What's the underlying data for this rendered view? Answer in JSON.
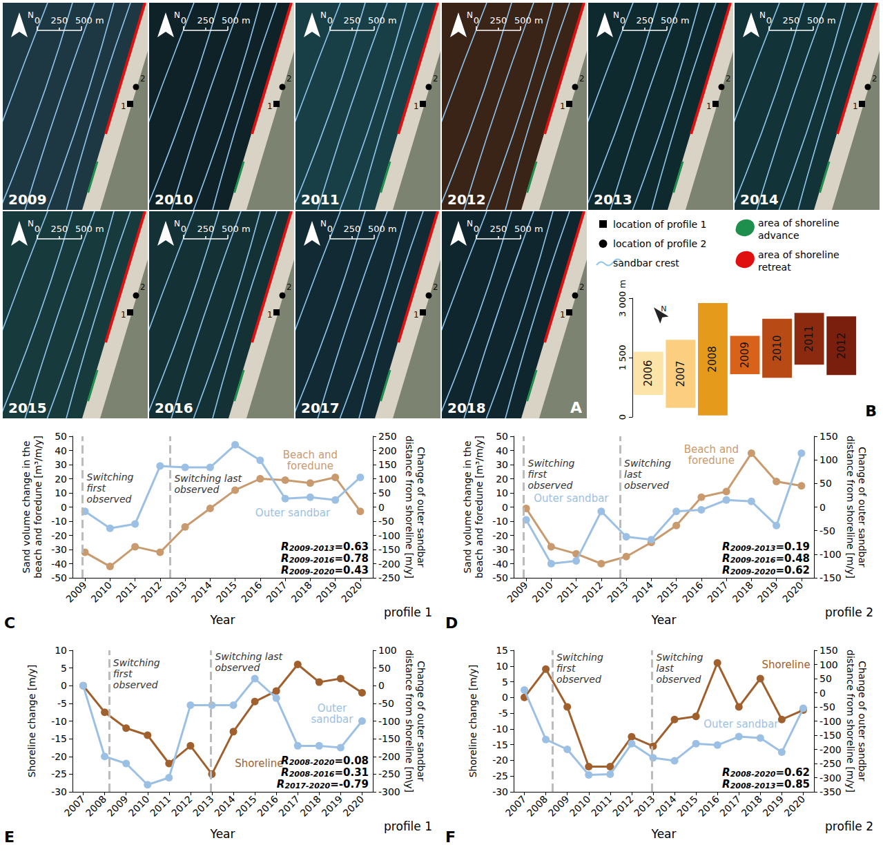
{
  "panel_a": {
    "letter": "A",
    "north": "N",
    "scale_labels": [
      "0",
      "250",
      "500 m"
    ],
    "profile_labels": [
      "1",
      "2"
    ],
    "tiles": [
      {
        "year": "2009",
        "color": "#1d3842"
      },
      {
        "year": "2010",
        "color": "#0f2228"
      },
      {
        "year": "2011",
        "color": "#173f45"
      },
      {
        "year": "2012",
        "color": "#3a2418"
      },
      {
        "year": "2013",
        "color": "#0e2a2e"
      },
      {
        "year": "2014",
        "color": "#123438"
      },
      {
        "year": "2015",
        "color": "#173a3c"
      },
      {
        "year": "2016",
        "color": "#143236"
      },
      {
        "year": "2017",
        "color": "#112a33"
      },
      {
        "year": "2018",
        "color": "#10262e"
      }
    ],
    "key_items": [
      {
        "marker": "square",
        "label": "location of profile 1",
        "color": "#000000"
      },
      {
        "marker": "circle",
        "label": "location of profile 2",
        "color": "#000000"
      },
      {
        "marker": "line",
        "label": "sandbar crest",
        "color": "#8ec5ee"
      },
      {
        "marker": "area",
        "label": "area of shoreline advance",
        "color": "#1f8f4e"
      },
      {
        "marker": "area",
        "label": "area of shoreline retreat",
        "color": "#e01010"
      }
    ]
  },
  "chart_data": [
    {
      "type": "range_bar",
      "letter": "B",
      "north": "N",
      "categories": [
        "2006",
        "2007",
        "2008",
        "2009",
        "2010",
        "2011",
        "2012"
      ],
      "low": [
        560,
        230,
        40,
        1080,
        990,
        1320,
        1060
      ],
      "high": [
        1650,
        1950,
        2880,
        2050,
        2480,
        2630,
        2540
      ],
      "colors": [
        "#fce3a8",
        "#fbcf7f",
        "#e59a1c",
        "#d8621a",
        "#b84a16",
        "#8b2a0f",
        "#7a1f0d"
      ],
      "ylim": [
        0,
        3000
      ],
      "yticks": [
        0,
        {
          "value": 1500,
          "label": "1 500"
        },
        {
          "value": 3000,
          "label": "3 000 m"
        }
      ],
      "data_labels": true,
      "tick_labels": "y",
      "grid": false
    },
    {
      "type": "line",
      "letter": "C",
      "panel": "profile 1",
      "x_title": "Year",
      "y_title": "Sand volume change in the beach and foredune [m³/m/y]",
      "y2_title": "Change of outer sandbar distance from shoreline [m/y]",
      "x": [
        2009,
        2010,
        2011,
        2012,
        2013,
        2014,
        2015,
        2016,
        2017,
        2018,
        2019,
        2020
      ],
      "xlim": [
        2008.5,
        2020.5
      ],
      "xticks": [
        2009,
        2010,
        2011,
        2012,
        2013,
        2014,
        2015,
        2016,
        2017,
        2018,
        2019,
        2020
      ],
      "ylim": [
        -50,
        50
      ],
      "yticks": [
        -50,
        -40,
        -30,
        -20,
        -10,
        0,
        10,
        20,
        30,
        40,
        50
      ],
      "y2lim": [
        -250,
        250
      ],
      "y2ticks": [
        -250,
        -200,
        -150,
        -100,
        -50,
        0,
        50,
        100,
        150,
        200,
        250
      ],
      "grid": false,
      "series": [
        {
          "name": "Beach and foredune",
          "color": "#c99a6e",
          "marker": "circle",
          "line_style": "solid",
          "values": [
            -32,
            -42,
            -28,
            -32,
            -14,
            -1,
            12,
            20,
            19,
            17,
            21,
            -3
          ]
        },
        {
          "name": "Outer sandbar",
          "color": "#9cc0e4",
          "marker": "circle",
          "line_style": "solid",
          "axis": "y2",
          "values": [
            -15,
            -75,
            -60,
            145,
            140,
            140,
            220,
            165,
            30,
            35,
            25,
            105
          ]
        }
      ],
      "annotations": [
        {
          "type": "vline",
          "x": 2008.9,
          "text": "Switching first observed"
        },
        {
          "type": "vline",
          "x": 2012.4,
          "text": "Switching last observed"
        }
      ],
      "correlations": [
        {
          "symbol": "R",
          "period": "2009-2013",
          "text": "=0.63"
        },
        {
          "symbol": "R",
          "period": "2009-2016",
          "text": "=0.78"
        },
        {
          "symbol": "R",
          "period": "2009-2020",
          "text": "=0.43"
        }
      ]
    },
    {
      "type": "line",
      "letter": "D",
      "panel": "profile 2",
      "x_title": "Year",
      "y_title": "Sand volume change in the beach and foredune [m³/m/y]",
      "y2_title": "Change of outer sandbar distance from shoreline [m/y]",
      "x": [
        2009,
        2010,
        2011,
        2012,
        2013,
        2014,
        2015,
        2016,
        2017,
        2018,
        2019,
        2020
      ],
      "xlim": [
        2008.5,
        2020.5
      ],
      "xticks": [
        2009,
        2010,
        2011,
        2012,
        2013,
        2014,
        2015,
        2016,
        2017,
        2018,
        2019,
        2020
      ],
      "ylim": [
        -50,
        50
      ],
      "yticks": [
        -50,
        -40,
        -30,
        -20,
        -10,
        0,
        10,
        20,
        30,
        40,
        50
      ],
      "y2lim": [
        -150,
        150
      ],
      "y2ticks": [
        -150,
        -100,
        -50,
        0,
        50,
        100,
        150
      ],
      "grid": false,
      "series": [
        {
          "name": "Beach and foredune",
          "color": "#c99a6e",
          "marker": "circle",
          "line_style": "solid",
          "values": [
            -1,
            -28,
            -33,
            -40,
            -35,
            -25,
            -13,
            7,
            11,
            38,
            18,
            15
          ]
        },
        {
          "name": "Outer sandbar",
          "color": "#9cc0e4",
          "marker": "circle",
          "line_style": "solid",
          "axis": "y2",
          "values": [
            -27,
            -120,
            -114,
            -9,
            -63,
            -69,
            -9,
            -6,
            15,
            12,
            -39,
            114
          ]
        }
      ],
      "annotations": [
        {
          "type": "vline",
          "x": 2008.9,
          "text": "Switching first observed"
        },
        {
          "type": "vline",
          "x": 2012.75,
          "text": "Switching last observed"
        }
      ],
      "correlations": [
        {
          "symbol": "R",
          "period": "2009-2013",
          "text": "=0.19"
        },
        {
          "symbol": "R",
          "period": "2009-2016",
          "text": "=0.48"
        },
        {
          "symbol": "R",
          "period": "2009-2020",
          "text": "=0.62"
        }
      ]
    },
    {
      "type": "line",
      "letter": "E",
      "panel": "profile 1",
      "x_title": "Year",
      "y_title": "Shoreline change [m/y]",
      "y2_title": "Change of outer sandbar distance from shoreline [m\\y]",
      "x": [
        2007,
        2008,
        2009,
        2010,
        2011,
        2012,
        2013,
        2014,
        2015,
        2016,
        2017,
        2018,
        2019,
        2020
      ],
      "xlim": [
        2006.5,
        2020.5
      ],
      "xticks": [
        2007,
        2008,
        2009,
        2010,
        2011,
        2012,
        2013,
        2014,
        2015,
        2016,
        2017,
        2018,
        2019,
        2020
      ],
      "ylim": [
        -30,
        10
      ],
      "yticks": [
        -30,
        -25,
        -20,
        -15,
        -10,
        -5,
        0,
        5,
        10
      ],
      "y2lim": [
        -300,
        100
      ],
      "y2ticks": [
        -300,
        -250,
        -200,
        -150,
        -100,
        -50,
        0,
        50,
        100
      ],
      "grid": false,
      "series": [
        {
          "name": "Shoreline",
          "color": "#a0602e",
          "marker": "circle",
          "line_style": "solid",
          "values": [
            0,
            -7.5,
            -12,
            -14,
            -22,
            -17,
            -25,
            -13,
            -4.5,
            -1.5,
            6,
            1,
            2,
            -2
          ]
        },
        {
          "name": "Outer sandbar",
          "color": "#9cc0e4",
          "marker": "circle",
          "line_style": "solid",
          "axis": "y2",
          "values": [
            0,
            -200,
            -220,
            -280,
            -260,
            -55,
            -55,
            -55,
            20,
            -35,
            -170,
            -170,
            -175,
            -100
          ]
        }
      ],
      "annotations": [
        {
          "type": "vline",
          "x": 2008.2,
          "text": "Switching first observed"
        },
        {
          "type": "vline",
          "x": 2012.95,
          "text": "Switching last observed"
        }
      ],
      "correlations": [
        {
          "symbol": "R",
          "period": "2008-2020",
          "text": "=0.08"
        },
        {
          "symbol": "R",
          "period": "2008-2016",
          "text": "=0.31"
        },
        {
          "symbol": "R",
          "period": "2017-2020",
          "text": "=-0.79"
        }
      ]
    },
    {
      "type": "line",
      "letter": "F",
      "panel": "profile 2",
      "x_title": "Year",
      "y_title": "Shoreline change [m/y]",
      "y2_title": "Change of outer sandbar distance from shoreline [m/y]",
      "x": [
        2007,
        2008,
        2009,
        2010,
        2011,
        2012,
        2013,
        2014,
        2015,
        2016,
        2017,
        2018,
        2019,
        2020
      ],
      "xlim": [
        2006.5,
        2020.5
      ],
      "xticks": [
        2007,
        2008,
        2009,
        2010,
        2011,
        2012,
        2013,
        2014,
        2015,
        2016,
        2017,
        2018,
        2019,
        2020
      ],
      "ylim": [
        -30,
        15
      ],
      "yticks": [
        -30,
        -25,
        -20,
        -15,
        -10,
        -5,
        0,
        5,
        10,
        15
      ],
      "y2lim": [
        -350,
        150
      ],
      "y2ticks": [
        -350,
        -300,
        -250,
        -200,
        -150,
        -100,
        -50,
        0,
        50,
        100,
        150
      ],
      "grid": false,
      "series": [
        {
          "name": "Shoreline",
          "color": "#a0602e",
          "marker": "circle",
          "line_style": "solid",
          "values": [
            0,
            9,
            -3,
            -22,
            -22,
            -12.5,
            -15.5,
            -7,
            -6,
            11,
            -3,
            6,
            -7,
            -4
          ]
        },
        {
          "name": "Outer sandbar",
          "color": "#9cc0e4",
          "marker": "circle",
          "line_style": "solid",
          "axis": "y2",
          "values": [
            10,
            -165,
            -200,
            -290,
            -288,
            -180,
            -230,
            -240,
            -180,
            -185,
            -155,
            -160,
            -210,
            -55
          ]
        }
      ],
      "annotations": [
        {
          "type": "vline",
          "x": 2008.3,
          "text": "Switching first observed"
        },
        {
          "type": "vline",
          "x": 2012.95,
          "text": "Switching last observed"
        }
      ],
      "correlations": [
        {
          "symbol": "R",
          "period": "2008-2020",
          "text": "=0.62"
        },
        {
          "symbol": "R",
          "period": "2008-2013",
          "text": "=0.85"
        }
      ]
    }
  ]
}
